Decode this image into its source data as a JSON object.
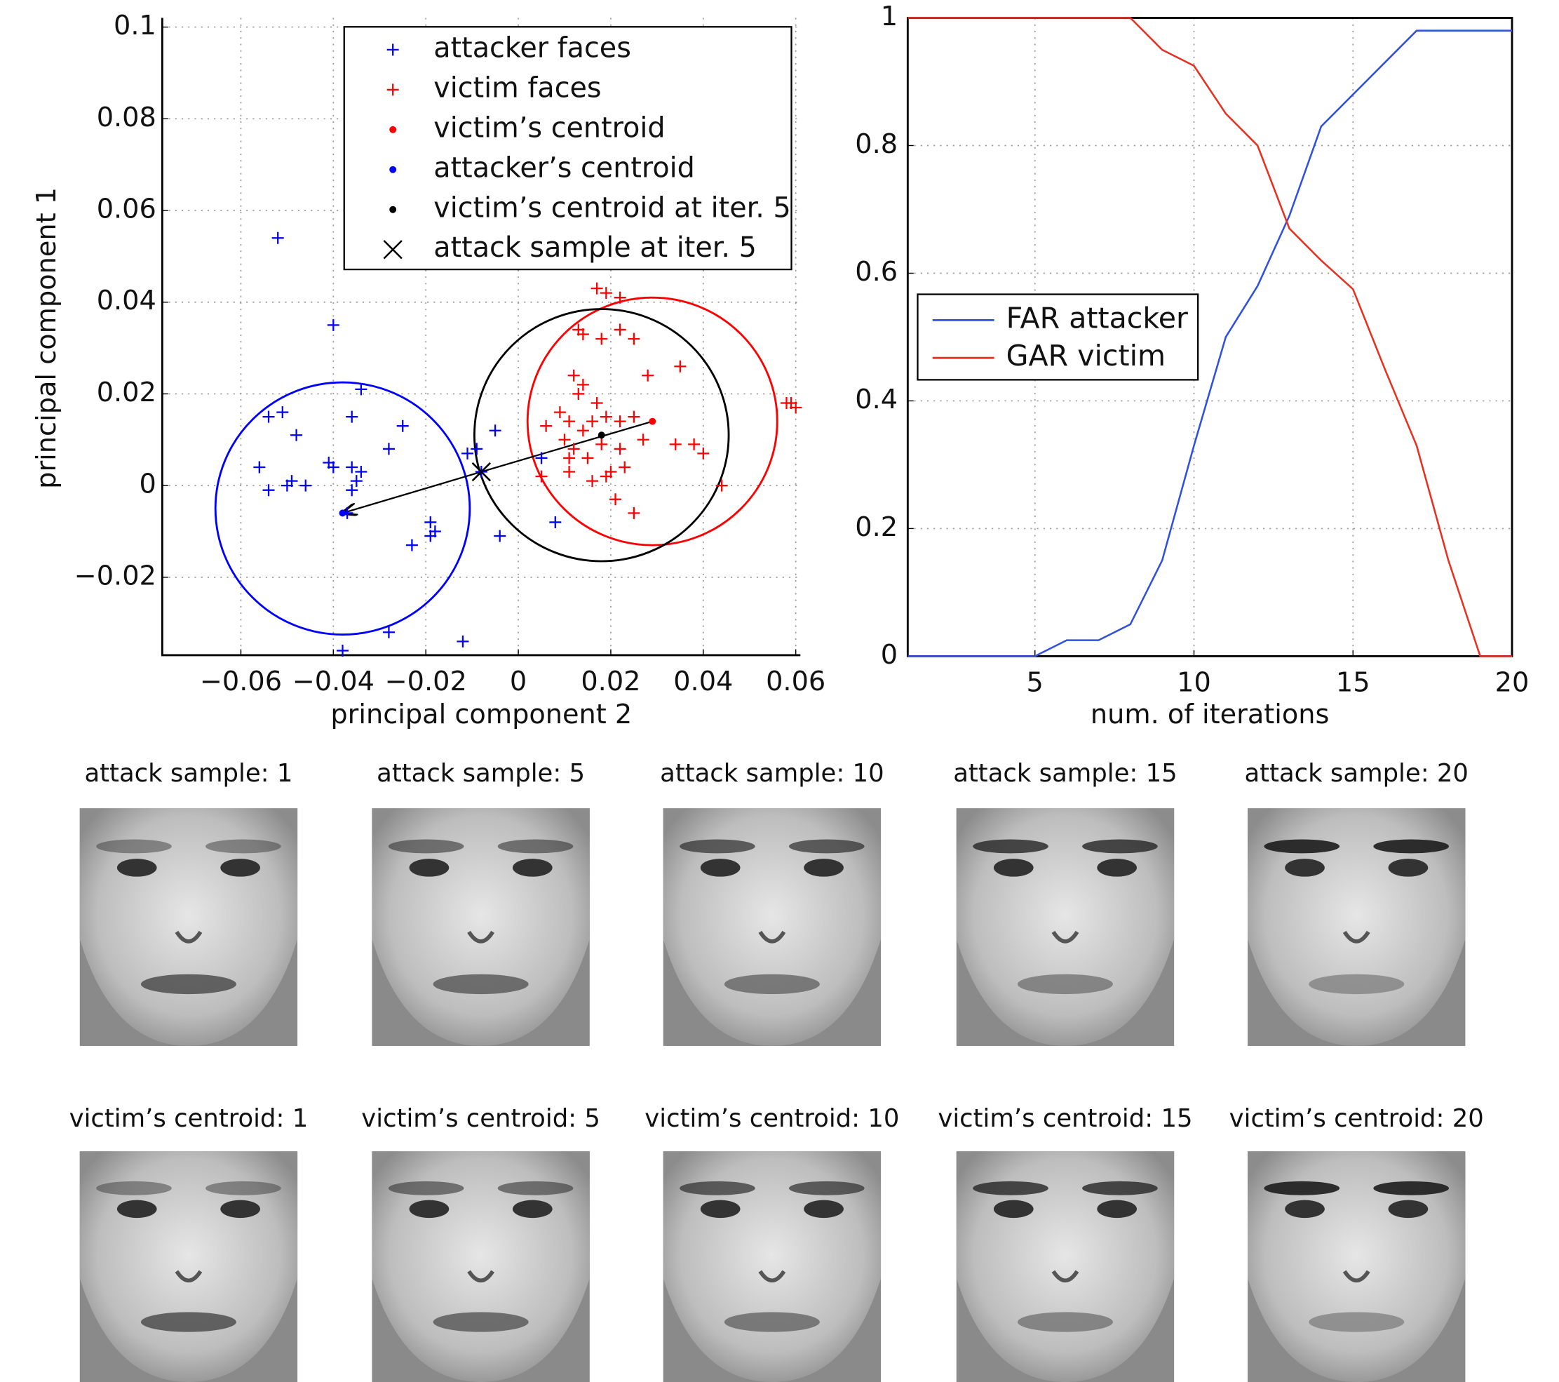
{
  "chart_data": [
    {
      "type": "scatter",
      "xlabel": "principal component 2",
      "ylabel": "principal component 1",
      "xlim": [
        -0.077,
        0.061
      ],
      "ylim": [
        -0.037,
        0.102
      ],
      "xticks": [
        {
          "value": -0.06,
          "label": "−0.06"
        },
        {
          "value": -0.04,
          "label": "−0.04"
        },
        {
          "value": -0.02,
          "label": "−0.02"
        },
        0,
        0.02,
        0.04,
        0.06
      ],
      "yticks": [
        {
          "value": -0.02,
          "label": "−0.02"
        },
        0,
        0.02,
        0.04,
        0.06,
        0.08,
        0.1
      ],
      "grid": true,
      "legend": "upper right",
      "series": [
        {
          "name": "attacker faces",
          "color": "#0000ff",
          "marker": "+",
          "x": [
            -0.052,
            -0.04,
            -0.034,
            -0.054,
            -0.051,
            -0.048,
            -0.036,
            -0.025,
            -0.028,
            -0.041,
            -0.04,
            -0.034,
            -0.036,
            -0.056,
            -0.054,
            -0.05,
            -0.049,
            -0.046,
            -0.036,
            -0.035,
            -0.019,
            -0.018,
            -0.019,
            -0.023,
            -0.037,
            -0.028,
            -0.012,
            -0.038,
            -0.011,
            -0.009,
            -0.005,
            -0.004,
            0.005,
            0.008,
            -0.008
          ],
          "values": [
            0.054,
            0.035,
            0.021,
            0.015,
            0.016,
            0.011,
            0.015,
            0.013,
            0.008,
            0.005,
            0.004,
            0.003,
            0.004,
            0.004,
            -0.001,
            0.0,
            0.001,
            0.0,
            -0.001,
            0.001,
            -0.008,
            -0.01,
            -0.011,
            -0.013,
            -0.006,
            -0.032,
            -0.034,
            -0.036,
            0.007,
            0.008,
            0.012,
            -0.011,
            0.006,
            -0.008,
            0.003
          ]
        },
        {
          "name": "victim faces",
          "color": "#ff0000",
          "marker": "+",
          "x": [
            0.017,
            0.019,
            0.022,
            0.013,
            0.014,
            0.018,
            0.022,
            0.025,
            0.012,
            0.014,
            0.028,
            0.035,
            0.017,
            0.013,
            0.009,
            0.011,
            0.016,
            0.019,
            0.022,
            0.025,
            0.006,
            0.014,
            0.01,
            0.012,
            0.018,
            0.022,
            0.027,
            0.011,
            0.015,
            0.02,
            0.023,
            0.034,
            0.038,
            0.04,
            0.005,
            0.011,
            0.016,
            0.019,
            0.021,
            0.025,
            0.044,
            0.058,
            0.059,
            0.06
          ],
          "values": [
            0.043,
            0.042,
            0.041,
            0.034,
            0.033,
            0.032,
            0.034,
            0.032,
            0.024,
            0.022,
            0.024,
            0.026,
            0.018,
            0.02,
            0.016,
            0.014,
            0.014,
            0.015,
            0.014,
            0.015,
            0.013,
            0.012,
            0.01,
            0.008,
            0.009,
            0.008,
            0.01,
            0.006,
            0.006,
            0.003,
            0.004,
            0.009,
            0.009,
            0.007,
            0.002,
            0.003,
            0.001,
            0.002,
            -0.003,
            -0.006,
            0.0,
            0.018,
            0.018,
            0.017
          ]
        },
        {
          "name": "victim’s centroid",
          "color": "#ff0000",
          "marker": ".",
          "x": [
            0.029
          ],
          "values": [
            0.014
          ]
        },
        {
          "name": "attacker’s centroid",
          "color": "#0000ff",
          "marker": ".",
          "x": [
            -0.038
          ],
          "values": [
            -0.006
          ]
        },
        {
          "name": "victim’s centroid at iter. 5",
          "color": "#000000",
          "marker": ".",
          "x": [
            0.018
          ],
          "values": [
            0.011
          ]
        },
        {
          "name": "attack sample at iter. 5",
          "color": "#000000",
          "marker": "x",
          "x": [
            -0.008
          ],
          "values": [
            0.003
          ]
        }
      ],
      "circles": [
        {
          "x": -0.038,
          "y": -0.005,
          "radius": 0.0275,
          "color": "#0000ff"
        },
        {
          "x": 0.029,
          "y": 0.014,
          "radius": 0.027,
          "color": "#ff0000"
        },
        {
          "x": 0.018,
          "y": 0.011,
          "radius": 0.0275,
          "color": "#000000"
        }
      ]
    },
    {
      "type": "line",
      "xlabel": "num. of iterations",
      "x": [
        1,
        2,
        3,
        4,
        5,
        6,
        7,
        8,
        9,
        10,
        11,
        12,
        13,
        14,
        15,
        16,
        17,
        18,
        19,
        20
      ],
      "xlim": [
        1,
        20
      ],
      "ylim": [
        0,
        1
      ],
      "xticks": [
        5,
        10,
        15,
        20
      ],
      "yticks": [
        0,
        0.2,
        0.4,
        0.6,
        0.8,
        1
      ],
      "grid": true,
      "legend": "center left",
      "series": [
        {
          "name": "FAR attacker",
          "color": "#3050e0",
          "values": [
            0,
            0,
            0,
            0,
            0,
            0.025,
            0.025,
            0.05,
            0.15,
            0.33,
            0.5,
            0.58,
            0.69,
            0.83,
            0.88,
            0.93,
            0.98,
            0.98,
            0.98,
            0.98
          ]
        },
        {
          "name": "GAR victim",
          "color": "#e83020",
          "values": [
            1,
            1,
            1,
            1,
            1,
            1,
            1,
            1,
            0.95,
            0.925,
            0.85,
            0.8,
            0.67,
            0.62,
            0.575,
            0.45,
            0.33,
            0.15,
            0,
            0
          ]
        }
      ]
    }
  ],
  "faces": {
    "attack_titles": [
      "attack sample: 1",
      "attack sample: 5",
      "attack sample: 10",
      "attack sample: 15",
      "attack sample: 20"
    ],
    "victim_titles": [
      "victim’s centroid: 1",
      "victim’s centroid: 5",
      "victim’s centroid: 10",
      "victim’s centroid: 15",
      "victim’s centroid: 20"
    ]
  }
}
